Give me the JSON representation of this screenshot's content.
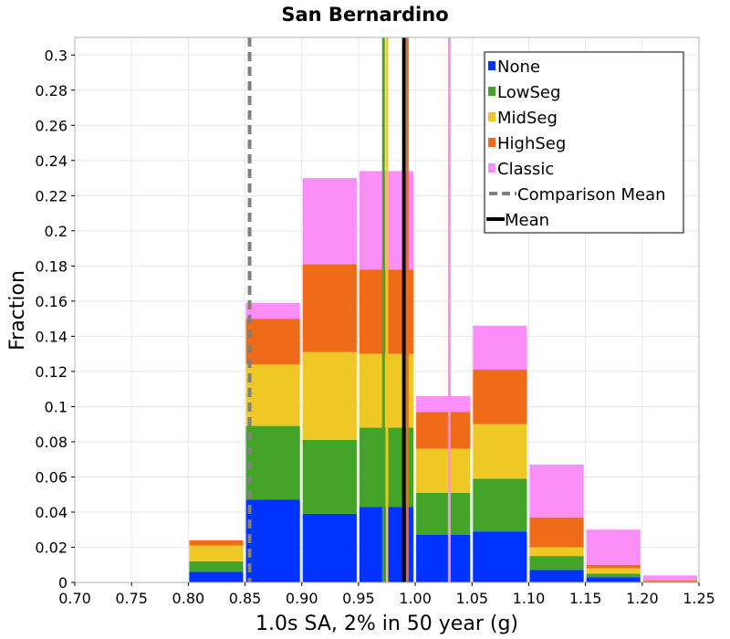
{
  "chart_data": {
    "type": "bar",
    "stacked": true,
    "title": "San Bernardino",
    "xlabel": "1.0s SA, 2% in 50 year (g)",
    "ylabel": "Fraction",
    "xlim": [
      0.7,
      1.25
    ],
    "ylim": [
      0,
      0.31
    ],
    "grid": true,
    "legend_position": "top-right",
    "bin_width": 0.05,
    "x_ticks": [
      "0.70",
      "0.75",
      "0.80",
      "0.85",
      "0.90",
      "0.95",
      "1.00",
      "1.05",
      "1.10",
      "1.15",
      "1.20",
      "1.25"
    ],
    "x_tick_values": [
      0.7,
      0.75,
      0.8,
      0.85,
      0.9,
      0.95,
      1.0,
      1.05,
      1.1,
      1.15,
      1.2,
      1.25
    ],
    "y_ticks": [
      "0",
      "0.02",
      "0.04",
      "0.06",
      "0.08",
      "0.1",
      "0.12",
      "0.14",
      "0.16",
      "0.18",
      "0.2",
      "0.22",
      "0.24",
      "0.26",
      "0.28",
      "0.3"
    ],
    "y_tick_values": [
      0,
      0.02,
      0.04,
      0.06,
      0.08,
      0.1,
      0.12,
      0.14,
      0.16,
      0.18,
      0.2,
      0.22,
      0.24,
      0.26,
      0.28,
      0.3
    ],
    "bin_starts": [
      0.8,
      0.85,
      0.9,
      0.95,
      1.0,
      1.05,
      1.1,
      1.15,
      1.2
    ],
    "series": [
      {
        "name": "None",
        "color": "#0033ff",
        "values": [
          0.006,
          0.047,
          0.039,
          0.043,
          0.027,
          0.029,
          0.007,
          0.003,
          0.0
        ]
      },
      {
        "name": "LowSeg",
        "color": "#44a329",
        "values": [
          0.006,
          0.042,
          0.042,
          0.045,
          0.024,
          0.03,
          0.008,
          0.002,
          0.0
        ]
      },
      {
        "name": "MidSeg",
        "color": "#f0c825",
        "values": [
          0.009,
          0.035,
          0.05,
          0.042,
          0.025,
          0.031,
          0.005,
          0.003,
          0.0
        ]
      },
      {
        "name": "HighSeg",
        "color": "#f06b18",
        "values": [
          0.003,
          0.026,
          0.05,
          0.048,
          0.021,
          0.031,
          0.017,
          0.002,
          0.001
        ]
      },
      {
        "name": "Classic",
        "color": "#fb8ff7",
        "values": [
          0.0,
          0.009,
          0.049,
          0.056,
          0.009,
          0.025,
          0.03,
          0.02,
          0.003
        ]
      }
    ],
    "mean_lines": [
      {
        "name": "None",
        "color": "#0033ff",
        "x": 0.99
      },
      {
        "name": "LowSeg",
        "color": "#44a329",
        "x": 0.972
      },
      {
        "name": "MidSeg",
        "color": "#f0c825",
        "x": 0.975
      },
      {
        "name": "HighSeg",
        "color": "#f06b18",
        "x": 0.993
      },
      {
        "name": "Classic",
        "color": "#fb8ff7",
        "x": 1.03
      }
    ],
    "comparison_mean": {
      "name": "Comparison Mean",
      "color": "#808080",
      "x": 0.854
    },
    "overall_mean": {
      "name": "Mean",
      "color": "#000000",
      "x": 0.99
    },
    "legend": [
      {
        "label": "None",
        "color": "#0033ff",
        "kind": "box"
      },
      {
        "label": "LowSeg",
        "color": "#44a329",
        "kind": "box"
      },
      {
        "label": "MidSeg",
        "color": "#f0c825",
        "kind": "box"
      },
      {
        "label": "HighSeg",
        "color": "#f06b18",
        "kind": "box"
      },
      {
        "label": "Classic",
        "color": "#fb8ff7",
        "kind": "box"
      },
      {
        "label": "Comparison Mean",
        "color": "#808080",
        "kind": "dash"
      },
      {
        "label": "Mean",
        "color": "#000000",
        "kind": "line"
      }
    ]
  }
}
